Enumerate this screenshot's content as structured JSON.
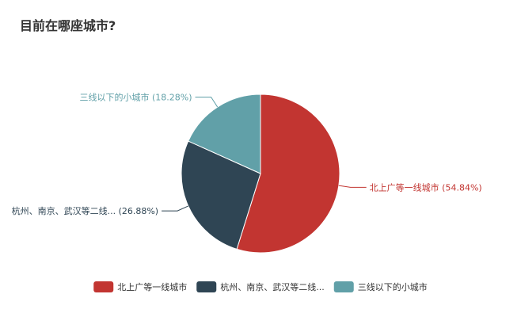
{
  "chart_data": {
    "type": "pie",
    "title": "目前在哪座城市?",
    "series": [
      {
        "name": "北上广等一线城市",
        "label": "北上广等一线城市 (54.84%)",
        "value": 54.84,
        "color": "#c23531"
      },
      {
        "name": "杭州、南京、武汉等二线...",
        "label": "杭州、南京、武汉等二线... (26.88%)",
        "value": 26.88,
        "color": "#2f4554"
      },
      {
        "name": "三线以下的小城市",
        "label": "三线以下的小城市 (18.28%)",
        "value": 18.28,
        "color": "#61a0a8"
      }
    ],
    "legend_position": "bottom-center",
    "unit": "%"
  }
}
